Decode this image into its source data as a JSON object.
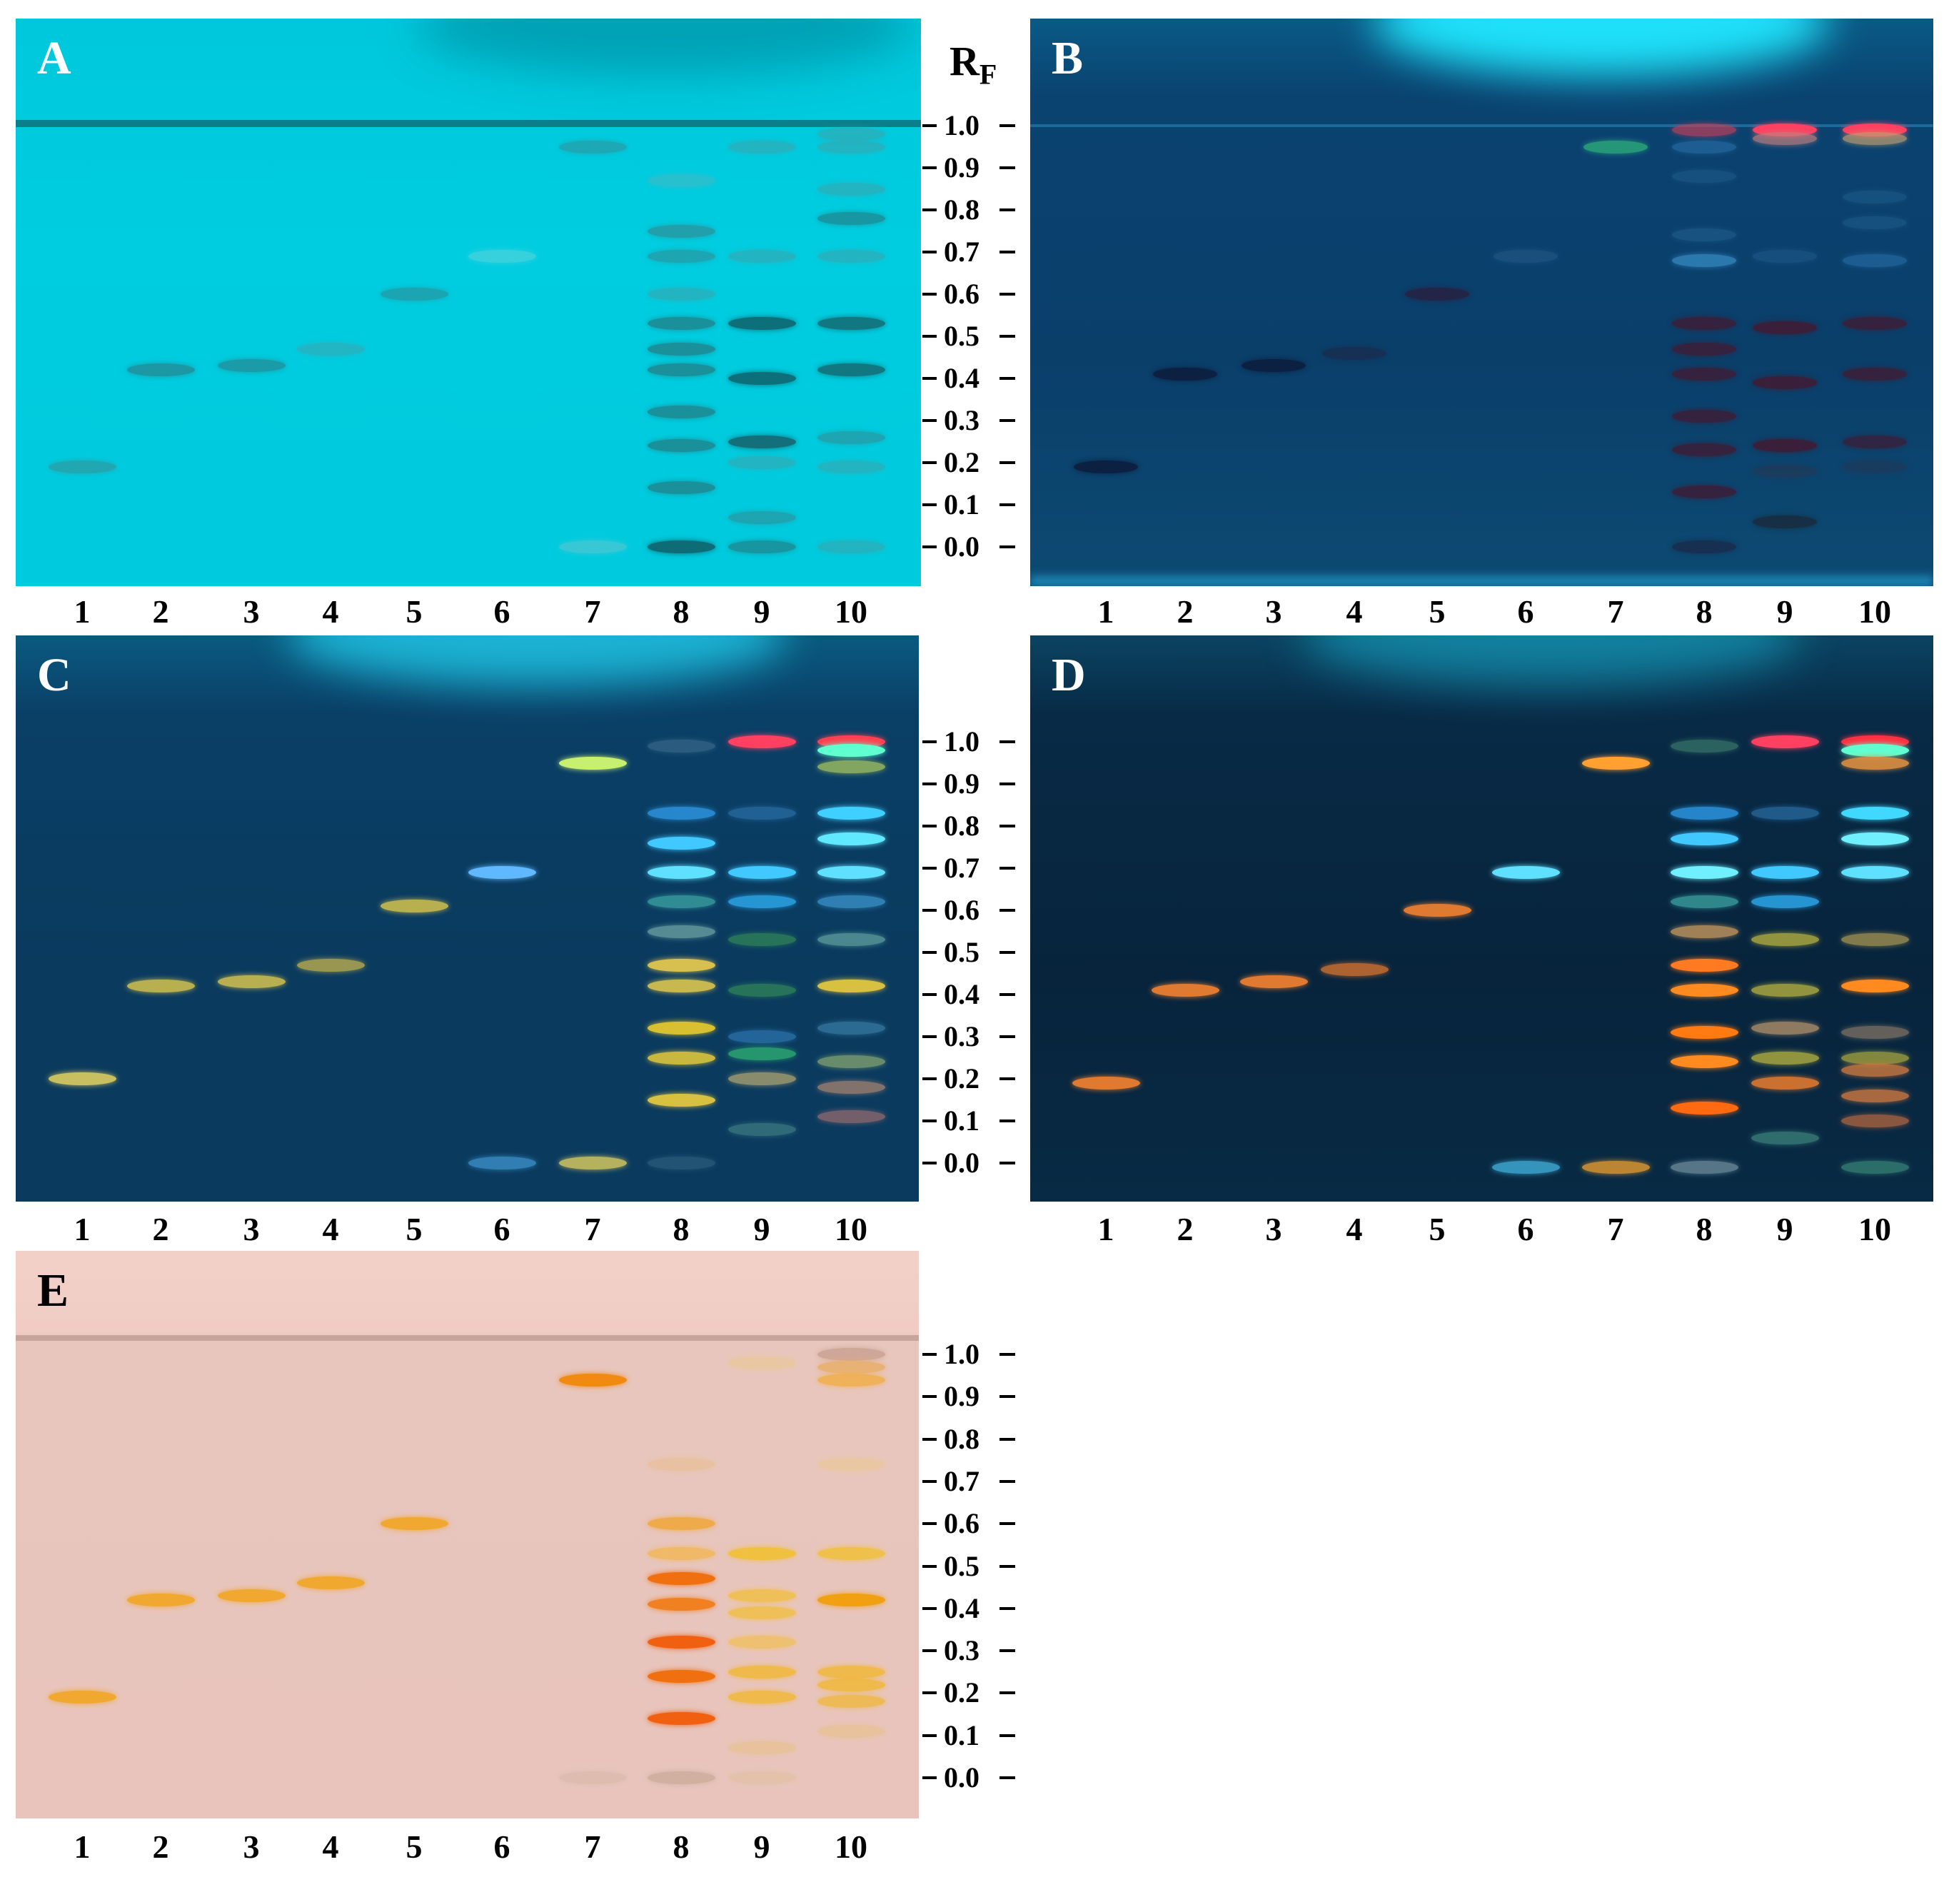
{
  "figure": {
    "rf_axis": {
      "title": "R",
      "title_sub": "F",
      "ticks": [
        "1.0",
        "0.9",
        "0.8",
        "0.7",
        "0.6",
        "0.5",
        "0.4",
        "0.3",
        "0.2",
        "0.1",
        "0.0"
      ]
    },
    "lanes": [
      "1",
      "2",
      "3",
      "4",
      "5",
      "6",
      "7",
      "8",
      "9",
      "10"
    ],
    "plates": [
      {
        "id": "A",
        "label": "A",
        "letter_color": "#ffffff",
        "background": "#00ccde"
      },
      {
        "id": "B",
        "label": "B",
        "letter_color": "#ffffff",
        "background": "#0a3f6a"
      },
      {
        "id": "C",
        "label": "C",
        "letter_color": "#ffffff",
        "background": "#0a3d63"
      },
      {
        "id": "D",
        "label": "D",
        "letter_color": "#ffffff",
        "background": "#08263f"
      },
      {
        "id": "E",
        "label": "E",
        "letter_color": "#000000",
        "background": "#ecc9c2"
      }
    ],
    "bands": {
      "A": [
        [
          1,
          0.19,
          "#2a9fa8",
          0.8
        ],
        [
          2,
          0.42,
          "#22909a",
          0.85
        ],
        [
          3,
          0.43,
          "#22909a",
          0.8
        ],
        [
          4,
          0.47,
          "#3aa7b2",
          0.6
        ],
        [
          5,
          0.6,
          "#229aa6",
          0.8
        ],
        [
          6,
          0.69,
          "#6fd4dc",
          0.5
        ],
        [
          7,
          0.95,
          "#2a9aa6",
          0.7
        ],
        [
          7,
          0.0,
          "#6fc6ce",
          0.5
        ],
        [
          8,
          0.87,
          "#4fb5bf",
          0.5
        ],
        [
          8,
          0.75,
          "#2a959f",
          0.8
        ],
        [
          8,
          0.69,
          "#2a959f",
          0.7
        ],
        [
          8,
          0.6,
          "#3aa5ae",
          0.6
        ],
        [
          8,
          0.53,
          "#1d8a94",
          0.9
        ],
        [
          8,
          0.47,
          "#1d8a94",
          0.9
        ],
        [
          8,
          0.42,
          "#1d8a94",
          0.9
        ],
        [
          8,
          0.32,
          "#1d8a94",
          0.9
        ],
        [
          8,
          0.24,
          "#1d8a94",
          0.9
        ],
        [
          8,
          0.14,
          "#1d8a94",
          0.9
        ],
        [
          8,
          0.0,
          "#0d6c76",
          1.0
        ],
        [
          9,
          0.95,
          "#3aa5ae",
          0.6
        ],
        [
          9,
          0.69,
          "#3aa5ae",
          0.6
        ],
        [
          9,
          0.53,
          "#0c6f79",
          1.0
        ],
        [
          9,
          0.4,
          "#0c6f79",
          1.0
        ],
        [
          9,
          0.25,
          "#136f79",
          1.0
        ],
        [
          9,
          0.2,
          "#3aa5ae",
          0.6
        ],
        [
          9,
          0.07,
          "#2a959f",
          0.7
        ],
        [
          9,
          0.0,
          "#1d8a94",
          0.8
        ],
        [
          10,
          0.98,
          "#3aa5ae",
          0.6
        ],
        [
          10,
          0.95,
          "#3aa5ae",
          0.6
        ],
        [
          10,
          0.85,
          "#3aa5ae",
          0.6
        ],
        [
          10,
          0.78,
          "#1d8a94",
          0.8
        ],
        [
          10,
          0.69,
          "#3aa5ae",
          0.6
        ],
        [
          10,
          0.53,
          "#136f79",
          0.9
        ],
        [
          10,
          0.42,
          "#136f79",
          0.9
        ],
        [
          10,
          0.26,
          "#2a959f",
          0.7
        ],
        [
          10,
          0.19,
          "#3aa5ae",
          0.6
        ],
        [
          10,
          0.0,
          "#3aa5ae",
          0.6
        ]
      ],
      "B": [
        [
          1,
          0.19,
          "#0d1e3d",
          0.9
        ],
        [
          2,
          0.41,
          "#0d1e3d",
          0.9
        ],
        [
          3,
          0.43,
          "#0d1e3d",
          0.9
        ],
        [
          4,
          0.46,
          "#1a2a4a",
          0.7
        ],
        [
          5,
          0.6,
          "#2a1f3f",
          0.8
        ],
        [
          6,
          0.69,
          "#2a5f8a",
          0.5
        ],
        [
          7,
          0.95,
          "#2aa07a",
          0.9
        ],
        [
          8,
          0.99,
          "#c0405a",
          0.7
        ],
        [
          8,
          0.95,
          "#2a70a8",
          0.6
        ],
        [
          8,
          0.88,
          "#1e5a8a",
          0.6
        ],
        [
          8,
          0.74,
          "#1e5a8a",
          0.7
        ],
        [
          8,
          0.68,
          "#3a90c8",
          0.7
        ],
        [
          8,
          0.53,
          "#3a1f3a",
          0.9
        ],
        [
          8,
          0.47,
          "#3a1f3a",
          0.9
        ],
        [
          8,
          0.41,
          "#3a1f3a",
          0.9
        ],
        [
          8,
          0.31,
          "#3a1f3a",
          0.9
        ],
        [
          8,
          0.23,
          "#3a1f3a",
          0.9
        ],
        [
          8,
          0.13,
          "#3a1f3a",
          0.9
        ],
        [
          8,
          0.0,
          "#1a2a4a",
          0.8
        ],
        [
          9,
          0.99,
          "#ff4060",
          1.0
        ],
        [
          9,
          0.97,
          "#c08080",
          0.7
        ],
        [
          9,
          0.69,
          "#1e5a8a",
          0.6
        ],
        [
          9,
          0.52,
          "#3a1f3a",
          1.0
        ],
        [
          9,
          0.39,
          "#3a1f3a",
          1.0
        ],
        [
          9,
          0.24,
          "#3a1f3a",
          1.0
        ],
        [
          9,
          0.18,
          "#1e3a5a",
          0.8
        ],
        [
          9,
          0.06,
          "#1a2a3a",
          0.8
        ],
        [
          10,
          0.99,
          "#ff4060",
          1.0
        ],
        [
          10,
          0.97,
          "#c0a070",
          0.7
        ],
        [
          10,
          0.83,
          "#1e5a8a",
          0.6
        ],
        [
          10,
          0.77,
          "#1e5a8a",
          0.6
        ],
        [
          10,
          0.68,
          "#2a70a8",
          0.6
        ],
        [
          10,
          0.53,
          "#3a1f3a",
          0.9
        ],
        [
          10,
          0.41,
          "#3a1f3a",
          0.9
        ],
        [
          10,
          0.25,
          "#3a1f3a",
          0.8
        ],
        [
          10,
          0.19,
          "#1e3a5a",
          0.7
        ]
      ],
      "C": [
        [
          1,
          0.2,
          "#c8c060",
          1.0
        ],
        [
          2,
          0.42,
          "#b8b050",
          1.0
        ],
        [
          3,
          0.43,
          "#b8b050",
          1.0
        ],
        [
          4,
          0.47,
          "#a8a050",
          0.9
        ],
        [
          5,
          0.61,
          "#b8b050",
          1.0
        ],
        [
          6,
          0.69,
          "#60b8ff",
          1.0
        ],
        [
          6,
          0.0,
          "#3a90c8",
          0.8
        ],
        [
          7,
          0.95,
          "#c8f070",
          1.0
        ],
        [
          7,
          0.0,
          "#c8c060",
          0.9
        ],
        [
          8,
          0.99,
          "#3a6a8a",
          0.7
        ],
        [
          8,
          0.83,
          "#2a90d8",
          0.9
        ],
        [
          8,
          0.76,
          "#40c8ff",
          1.0
        ],
        [
          8,
          0.69,
          "#60e0ff",
          1.0
        ],
        [
          8,
          0.62,
          "#3aa0a0",
          0.8
        ],
        [
          8,
          0.55,
          "#6aa0a0",
          0.8
        ],
        [
          8,
          0.47,
          "#d8c050",
          1.0
        ],
        [
          8,
          0.42,
          "#c8b850",
          1.0
        ],
        [
          8,
          0.32,
          "#d8c030",
          1.0
        ],
        [
          8,
          0.25,
          "#c8b840",
          1.0
        ],
        [
          8,
          0.15,
          "#d8c040",
          1.0
        ],
        [
          8,
          0.0,
          "#2a5a7a",
          0.8
        ],
        [
          9,
          1.0,
          "#ff4060",
          1.0
        ],
        [
          9,
          0.83,
          "#2a70a8",
          0.7
        ],
        [
          9,
          0.69,
          "#40c8ff",
          1.0
        ],
        [
          9,
          0.62,
          "#2aa0e0",
          0.9
        ],
        [
          9,
          0.53,
          "#2a7a5a",
          0.9
        ],
        [
          9,
          0.41,
          "#2a7a5a",
          0.9
        ],
        [
          9,
          0.3,
          "#2a70a8",
          0.8
        ],
        [
          9,
          0.26,
          "#2aa070",
          0.9
        ],
        [
          9,
          0.2,
          "#a8a070",
          0.8
        ],
        [
          9,
          0.08,
          "#4a8a8a",
          0.6
        ],
        [
          10,
          1.0,
          "#ff4050",
          1.0
        ],
        [
          10,
          0.98,
          "#60ffd0",
          1.0
        ],
        [
          10,
          0.94,
          "#a0c060",
          0.8
        ],
        [
          10,
          0.83,
          "#40d0ff",
          1.0
        ],
        [
          10,
          0.77,
          "#60e8ff",
          1.0
        ],
        [
          10,
          0.69,
          "#60e0ff",
          1.0
        ],
        [
          10,
          0.62,
          "#3a90c8",
          0.8
        ],
        [
          10,
          0.53,
          "#5a9a9a",
          0.8
        ],
        [
          10,
          0.42,
          "#d8c040",
          1.0
        ],
        [
          10,
          0.32,
          "#3a80a8",
          0.7
        ],
        [
          10,
          0.24,
          "#80a070",
          0.8
        ],
        [
          10,
          0.18,
          "#a08070",
          0.8
        ],
        [
          10,
          0.11,
          "#a07070",
          0.7
        ]
      ],
      "D": [
        [
          1,
          0.19,
          "#e07a30",
          1.0
        ],
        [
          2,
          0.41,
          "#e07a30",
          1.0
        ],
        [
          3,
          0.43,
          "#e07a30",
          1.0
        ],
        [
          4,
          0.46,
          "#c06a30",
          0.9
        ],
        [
          5,
          0.6,
          "#e07a30",
          1.0
        ],
        [
          6,
          0.69,
          "#60e0ff",
          1.0
        ],
        [
          6,
          -0.01,
          "#3aa0c8",
          0.9
        ],
        [
          7,
          0.95,
          "#ffa030",
          1.0
        ],
        [
          7,
          -0.01,
          "#d09030",
          0.9
        ],
        [
          8,
          0.99,
          "#3a7a6a",
          0.7
        ],
        [
          8,
          0.83,
          "#2a90d8",
          0.9
        ],
        [
          8,
          0.77,
          "#40c8ff",
          1.0
        ],
        [
          8,
          0.69,
          "#70f0ff",
          1.0
        ],
        [
          8,
          0.62,
          "#3aa0a0",
          0.8
        ],
        [
          8,
          0.55,
          "#b08a5a",
          0.9
        ],
        [
          8,
          0.47,
          "#ff7a20",
          1.0
        ],
        [
          8,
          0.41,
          "#ff8a20",
          1.0
        ],
        [
          8,
          0.31,
          "#ff7a10",
          1.0
        ],
        [
          8,
          0.24,
          "#ff8a20",
          1.0
        ],
        [
          8,
          0.13,
          "#ff6a10",
          1.0
        ],
        [
          8,
          -0.01,
          "#6a8a9a",
          0.8
        ],
        [
          9,
          1.0,
          "#ff4060",
          1.0
        ],
        [
          9,
          0.83,
          "#2a70a8",
          0.7
        ],
        [
          9,
          0.69,
          "#40c8ff",
          1.0
        ],
        [
          9,
          0.62,
          "#2aa0e0",
          0.9
        ],
        [
          9,
          0.53,
          "#a0a040",
          0.9
        ],
        [
          9,
          0.41,
          "#a0a040",
          0.9
        ],
        [
          9,
          0.32,
          "#b0906a",
          0.8
        ],
        [
          9,
          0.25,
          "#a0a040",
          0.9
        ],
        [
          9,
          0.19,
          "#e07a30",
          0.9
        ],
        [
          9,
          0.06,
          "#4a9a8a",
          0.6
        ],
        [
          10,
          1.0,
          "#ff3040",
          1.0
        ],
        [
          10,
          0.98,
          "#60ffd0",
          1.0
        ],
        [
          10,
          0.95,
          "#e09040",
          0.9
        ],
        [
          10,
          0.83,
          "#40d8ff",
          1.0
        ],
        [
          10,
          0.77,
          "#70f0ff",
          1.0
        ],
        [
          10,
          0.69,
          "#60e0ff",
          1.0
        ],
        [
          10,
          0.53,
          "#a09050",
          0.8
        ],
        [
          10,
          0.42,
          "#ff8a20",
          1.0
        ],
        [
          10,
          0.31,
          "#8a7a6a",
          0.7
        ],
        [
          10,
          0.25,
          "#a0a040",
          0.8
        ],
        [
          10,
          0.22,
          "#d07a40",
          0.8
        ],
        [
          10,
          0.16,
          "#d07a40",
          0.8
        ],
        [
          10,
          0.1,
          "#c06a40",
          0.7
        ],
        [
          10,
          -0.01,
          "#3a8a7a",
          0.7
        ]
      ],
      "E": [
        [
          1,
          0.19,
          "#f0a830",
          1.0
        ],
        [
          2,
          0.42,
          "#f0a830",
          1.0
        ],
        [
          3,
          0.43,
          "#f0a830",
          1.0
        ],
        [
          4,
          0.46,
          "#f0a830",
          1.0
        ],
        [
          5,
          0.6,
          "#f0a830",
          1.0
        ],
        [
          7,
          0.94,
          "#f08a10",
          1.0
        ],
        [
          7,
          0.0,
          "#d8b8a8",
          0.6
        ],
        [
          8,
          0.74,
          "#e8c098",
          0.7
        ],
        [
          8,
          0.6,
          "#f0a840",
          0.9
        ],
        [
          8,
          0.53,
          "#f0b860",
          0.9
        ],
        [
          8,
          0.47,
          "#f07010",
          1.0
        ],
        [
          8,
          0.41,
          "#f08020",
          1.0
        ],
        [
          8,
          0.32,
          "#f06010",
          1.0
        ],
        [
          8,
          0.24,
          "#f07010",
          1.0
        ],
        [
          8,
          0.14,
          "#f06010",
          1.0
        ],
        [
          8,
          0.0,
          "#c8a898",
          0.7
        ],
        [
          9,
          0.98,
          "#e8c898",
          0.7
        ],
        [
          9,
          0.53,
          "#f0c040",
          1.0
        ],
        [
          9,
          0.43,
          "#f0c050",
          0.9
        ],
        [
          9,
          0.39,
          "#f0c050",
          0.9
        ],
        [
          9,
          0.32,
          "#f0c060",
          0.8
        ],
        [
          9,
          0.25,
          "#f0b840",
          0.9
        ],
        [
          9,
          0.19,
          "#f0b840",
          0.9
        ],
        [
          9,
          0.07,
          "#e8c090",
          0.7
        ],
        [
          9,
          0.0,
          "#e0c0a0",
          0.6
        ],
        [
          10,
          1.0,
          "#c8a090",
          0.8
        ],
        [
          10,
          0.97,
          "#e8b070",
          0.9
        ],
        [
          10,
          0.94,
          "#f0b050",
          0.9
        ],
        [
          10,
          0.74,
          "#e8c898",
          0.7
        ],
        [
          10,
          0.53,
          "#f0c040",
          0.9
        ],
        [
          10,
          0.42,
          "#f0a010",
          1.0
        ],
        [
          10,
          0.25,
          "#f0b840",
          0.9
        ],
        [
          10,
          0.22,
          "#f0b840",
          0.9
        ],
        [
          10,
          0.18,
          "#f0b840",
          0.8
        ],
        [
          10,
          0.11,
          "#e8c090",
          0.7
        ]
      ]
    }
  }
}
